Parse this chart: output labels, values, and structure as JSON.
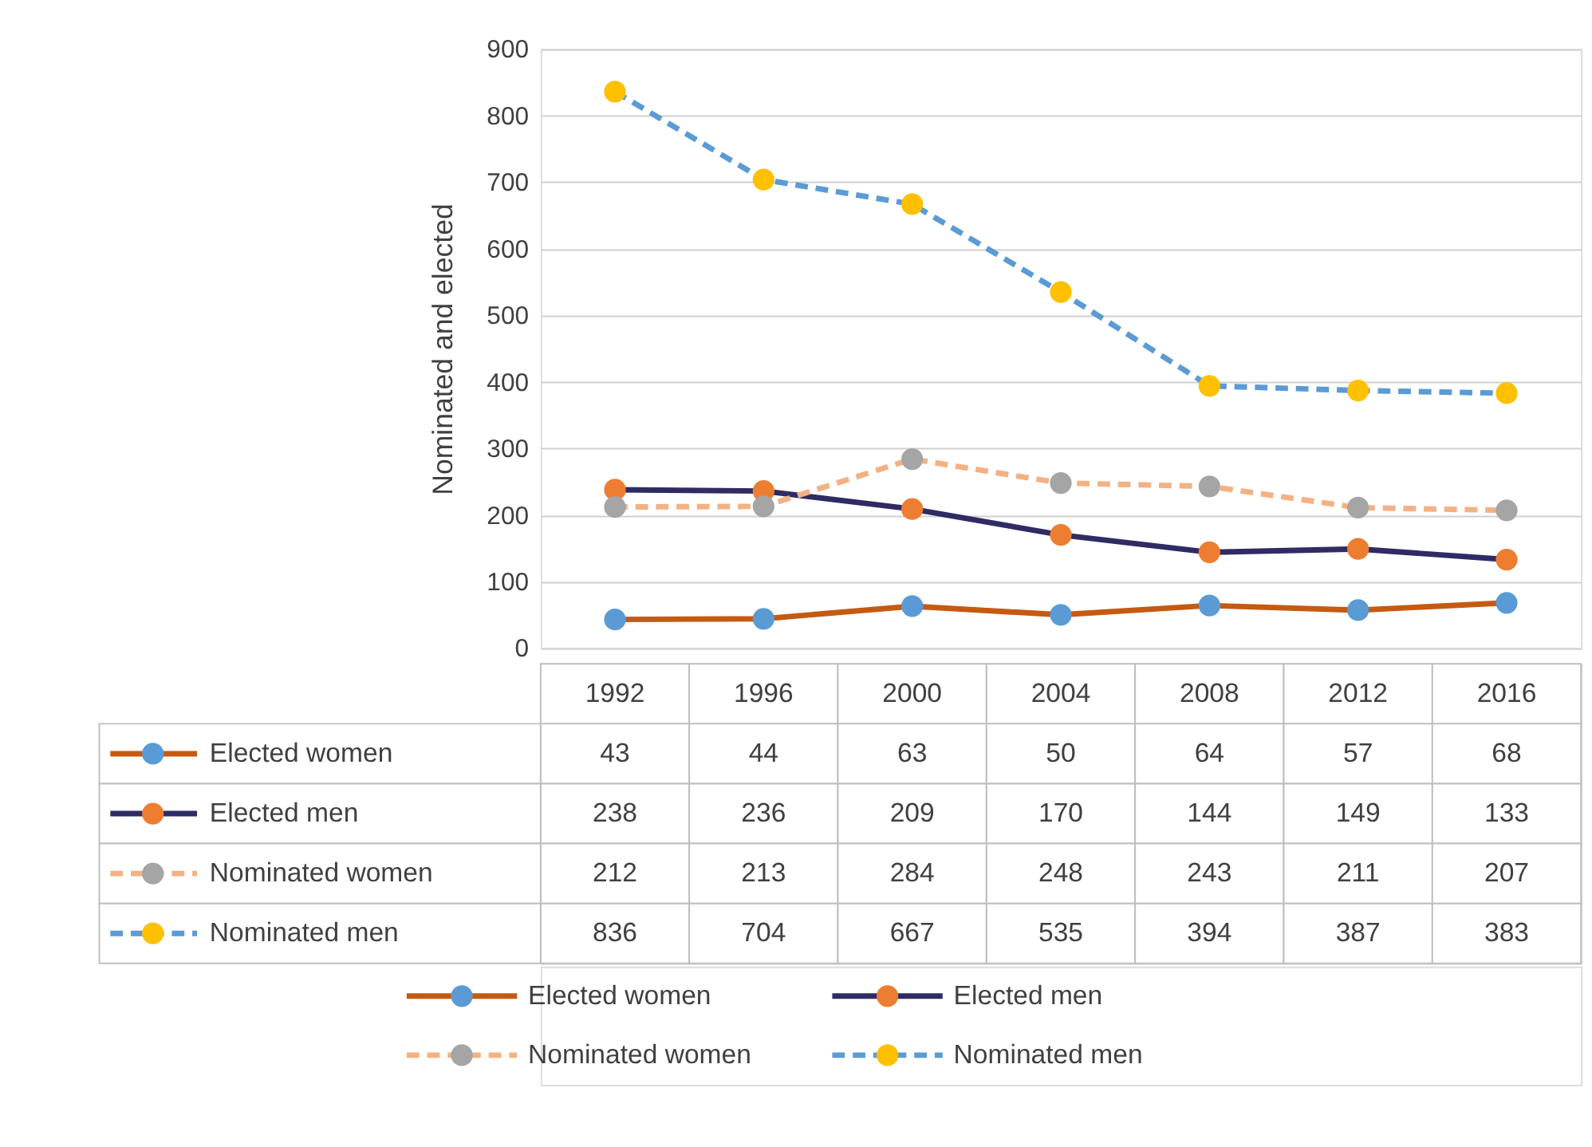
{
  "chart_data": {
    "type": "line",
    "ylabel": "Nominated and elected",
    "categories": [
      "1992",
      "1996",
      "2000",
      "2004",
      "2008",
      "2012",
      "2016"
    ],
    "series": [
      {
        "name": "Elected women",
        "color": "#c55a11",
        "line_style": "solid",
        "colors": [
          "#5b9bd5",
          "#5b9bd5",
          "#5b9bd5",
          "#5b9bd5",
          "#5b9bd5",
          "#5b9bd5",
          "#5b9bd5"
        ],
        "values": [
          43,
          44,
          63,
          50,
          64,
          57,
          68
        ]
      },
      {
        "name": "Elected men",
        "color": "#2f2b63",
        "line_style": "solid",
        "colors": [
          "#ed7d31",
          "#ed7d31",
          "#ed7d31",
          "#ed7d31",
          "#ed7d31",
          "#ed7d31",
          "#ed7d31"
        ],
        "values": [
          238,
          236,
          209,
          170,
          144,
          149,
          133
        ]
      },
      {
        "name": "Nominated women",
        "color": "#f4b183",
        "line_style": "dashed",
        "colors": [
          "#a5a5a5",
          "#a5a5a5",
          "#a5a5a5",
          "#a5a5a5",
          "#a5a5a5",
          "#a5a5a5",
          "#a5a5a5"
        ],
        "values": [
          212,
          213,
          284,
          248,
          243,
          211,
          207
        ]
      },
      {
        "name": "Nominated men",
        "color": "#5b9bd5",
        "line_style": "dashed",
        "colors": [
          "#ffc000",
          "#ffc000",
          "#ffc000",
          "#ffc000",
          "#ffc000",
          "#ffc000",
          "#ffc000"
        ],
        "values": [
          836,
          704,
          667,
          535,
          394,
          387,
          383
        ]
      }
    ],
    "ylim": [
      0,
      900
    ],
    "yticks": [
      0,
      100,
      200,
      300,
      400,
      500,
      600,
      700,
      800,
      900
    ],
    "grid": "y",
    "marker": "circle",
    "data_labels": true,
    "legend": "bottom"
  }
}
